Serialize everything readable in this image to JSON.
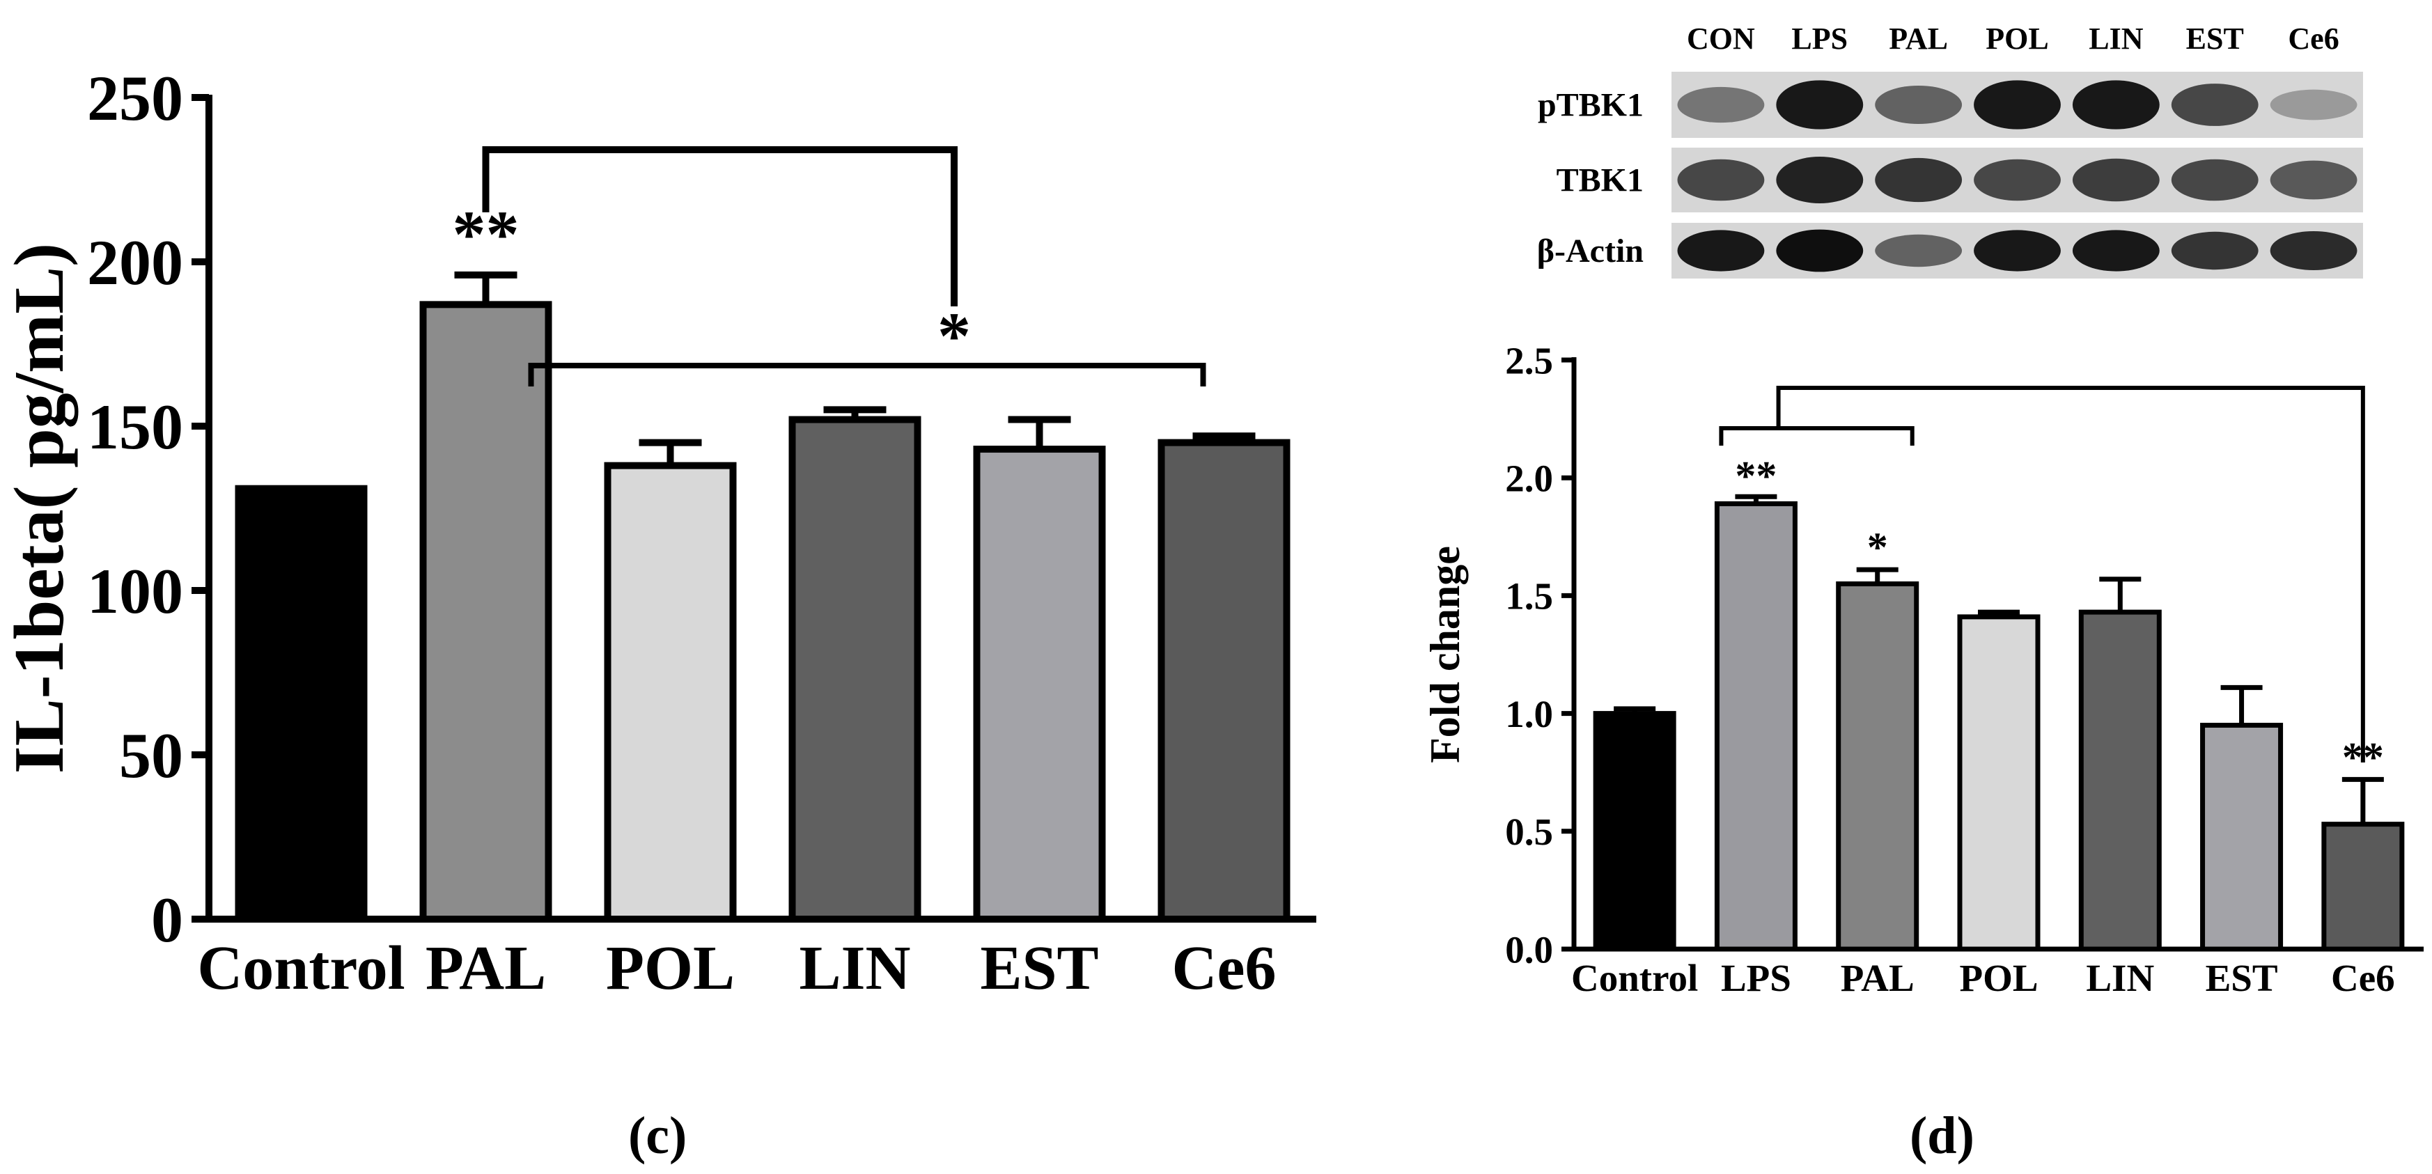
{
  "panels": {
    "c_label": "(c)",
    "d_label": "(d)"
  },
  "chart_data": [
    {
      "panel": "(c)",
      "type": "bar",
      "ylabel": "IL-1beta( pg/mL)",
      "xlabel": "",
      "ylim": [
        0,
        250
      ],
      "yticks": [
        "0",
        "50",
        "100",
        "150",
        "200",
        "250"
      ],
      "categories": [
        "Control",
        "PAL",
        "POL",
        "LIN",
        "EST",
        "Ce6"
      ],
      "values": [
        131,
        187,
        138,
        152,
        143,
        145
      ],
      "errors": [
        0,
        9,
        7,
        3,
        9,
        2
      ],
      "colors": [
        "#000000",
        "#8c8c8c",
        "#d8d8d8",
        "#606060",
        "#a3a3a8",
        "#5a5a5a"
      ],
      "annotations": [
        {
          "category": "PAL",
          "text": "**"
        },
        {
          "bracket": [
            "PAL",
            "POL"
          ],
          "text": ""
        },
        {
          "bracket": [
            "POL",
            "Ce6"
          ],
          "text": "*"
        }
      ],
      "grid": false
    },
    {
      "panel": "(d)",
      "type": "bar",
      "ylabel": "Fold change",
      "xlabel": "",
      "ylim": [
        0,
        2.5
      ],
      "yticks": [
        "0.0",
        "0.5",
        "1.0",
        "1.5",
        "2.0",
        "2.5"
      ],
      "categories": [
        "Control",
        "LPS",
        "PAL",
        "POL",
        "LIN",
        "EST",
        "Ce6"
      ],
      "values": [
        1.0,
        1.89,
        1.55,
        1.41,
        1.43,
        0.95,
        0.53
      ],
      "errors": [
        0.02,
        0.03,
        0.06,
        0.02,
        0.14,
        0.16,
        0.19
      ],
      "colors": [
        "#000000",
        "#9a9a9f",
        "#838383",
        "#d8d8d8",
        "#606060",
        "#a3a3a8",
        "#5a5a5a"
      ],
      "annotations": [
        {
          "category": "LPS",
          "text": "**"
        },
        {
          "category": "PAL",
          "text": "*"
        },
        {
          "category": "Ce6",
          "text": "**"
        },
        {
          "bracket": [
            "LPS",
            "PAL"
          ],
          "text": ""
        },
        {
          "bracket": [
            "LPS-PAL",
            "Ce6"
          ],
          "text": ""
        }
      ],
      "grid": false
    }
  ],
  "western_blot": {
    "lanes": [
      "CON",
      "LPS",
      "PAL",
      "POL",
      "LIN",
      "EST",
      "Ce6"
    ],
    "rows": [
      {
        "label": "pTBK1",
        "intensity": [
          0.45,
          0.95,
          0.55,
          0.95,
          0.95,
          0.7,
          0.25
        ]
      },
      {
        "label": "TBK1",
        "intensity": [
          0.7,
          0.9,
          0.8,
          0.7,
          0.75,
          0.7,
          0.6
        ]
      },
      {
        "label": "β-Actin",
        "intensity": [
          0.95,
          1.0,
          0.55,
          0.95,
          0.95,
          0.8,
          0.85
        ]
      }
    ]
  }
}
